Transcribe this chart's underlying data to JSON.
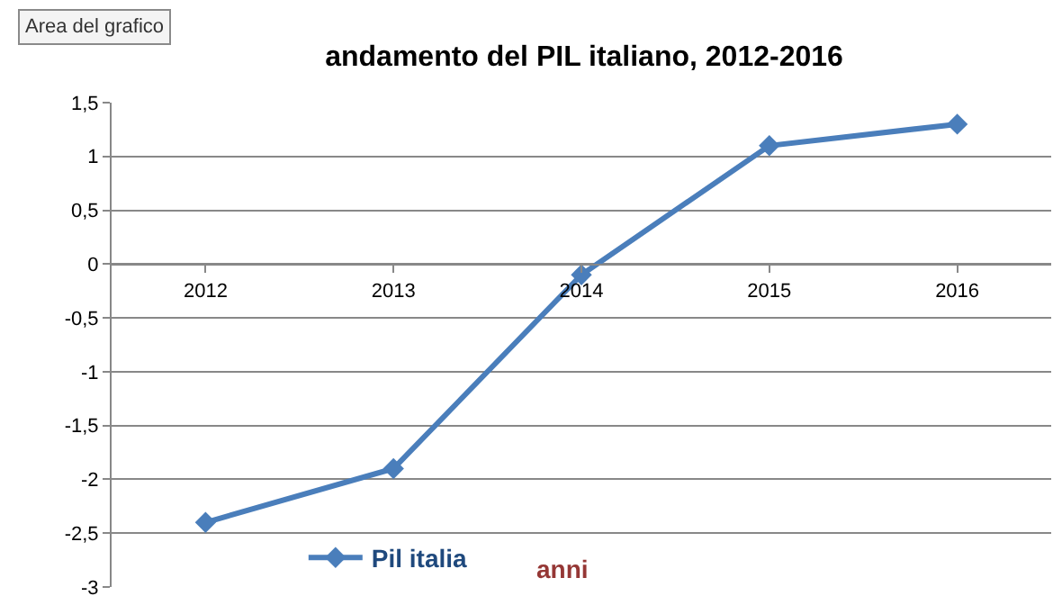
{
  "chart_data": {
    "type": "line",
    "title": "andamento del PIL italiano, 2012-2016",
    "xlabel": "anni",
    "categories": [
      "2012",
      "2013",
      "2014",
      "2015",
      "2016"
    ],
    "series": [
      {
        "name": "Pil italia",
        "color": "#4a7ebb",
        "values": [
          -2.4,
          -1.9,
          -0.1,
          1.1,
          1.3
        ]
      }
    ],
    "ylim": [
      -3,
      1.5
    ],
    "yticks": [
      -3,
      {
        "value": -2.5,
        "label": "-2,5"
      },
      -2,
      {
        "value": -1.5,
        "label": "-1,5"
      },
      -1,
      {
        "value": -0.5,
        "label": "-0,5"
      },
      0,
      {
        "value": 0.5,
        "label": "0,5"
      },
      1,
      {
        "value": 1.5,
        "label": "1,5"
      }
    ],
    "grid": "y",
    "legend": "bottom",
    "marker": "diamond",
    "line_style": "solid",
    "annotations": [
      "Area del grafico"
    ]
  }
}
